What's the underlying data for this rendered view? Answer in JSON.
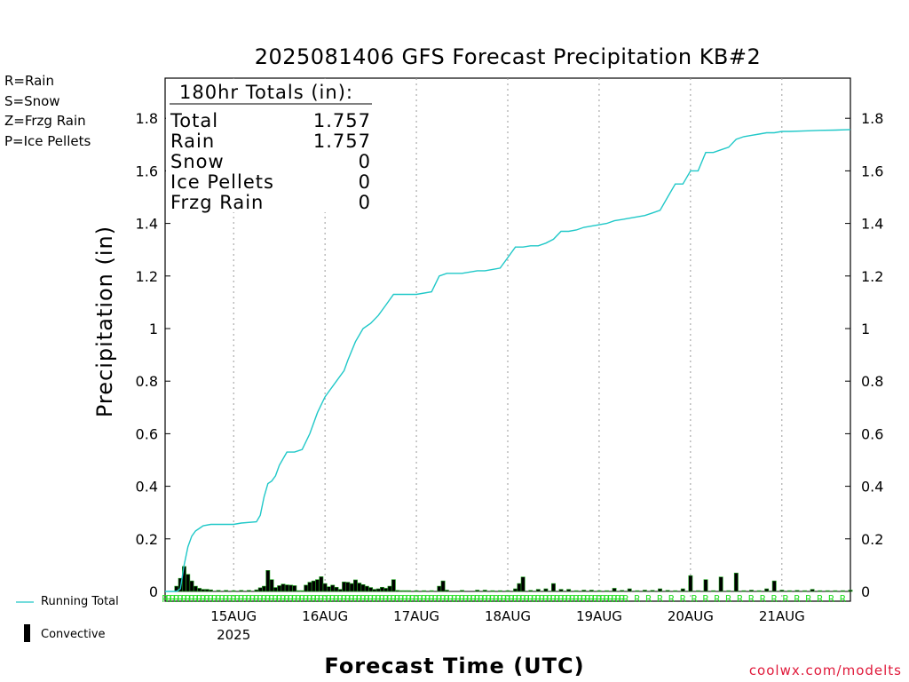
{
  "chart_data": {
    "type": "bar+line",
    "title": "2025081406 GFS Forecast Precipitation KB#2",
    "ylabel": "Precipitation (in)",
    "xlabel": "Forecast Time (UTC)",
    "ylim": [
      0,
      1.9
    ],
    "yticks": [
      0,
      0.2,
      0.4,
      0.6,
      0.8,
      1,
      1.2,
      1.4,
      1.6,
      1.8
    ],
    "ytick_labels": [
      "0",
      "0.2",
      "0.4",
      "0.6",
      "0.8",
      "1",
      "1.2",
      "1.4",
      "1.6",
      "1.8"
    ],
    "xlim_hours": [
      0,
      180
    ],
    "xticks": [
      {
        "hour": 18,
        "label": "15AUG",
        "sub": "2025"
      },
      {
        "hour": 42,
        "label": "16AUG",
        "sub": ""
      },
      {
        "hour": 66,
        "label": "17AUG",
        "sub": ""
      },
      {
        "hour": 90,
        "label": "18AUG",
        "sub": ""
      },
      {
        "hour": 114,
        "label": "19AUG",
        "sub": ""
      },
      {
        "hour": 138,
        "label": "20AUG",
        "sub": ""
      },
      {
        "hour": 162,
        "label": "21AUG",
        "sub": ""
      }
    ],
    "running_total": {
      "name": "Running Total",
      "color": "#20c8c8",
      "hours": [
        0,
        3,
        4,
        5,
        6,
        7,
        8,
        9,
        10,
        12,
        15,
        18,
        20,
        24,
        25,
        26,
        27,
        28,
        29,
        30,
        32,
        34,
        36,
        38,
        40,
        42,
        43,
        45,
        47,
        48,
        50,
        52,
        54,
        56,
        58,
        60,
        61,
        62,
        63,
        64,
        66,
        70,
        72,
        74,
        75,
        76,
        78,
        82,
        84,
        86,
        88,
        90,
        92,
        94,
        96,
        98,
        100,
        102,
        104,
        106,
        108,
        110,
        112,
        114,
        116,
        118,
        120,
        122,
        124,
        126,
        128,
        130,
        132,
        134,
        136,
        138,
        140,
        142,
        144,
        146,
        148,
        150,
        152,
        154,
        156,
        158,
        160,
        162,
        164,
        168,
        172,
        176,
        180
      ],
      "values": [
        0,
        0,
        0.01,
        0.1,
        0.17,
        0.21,
        0.23,
        0.24,
        0.25,
        0.255,
        0.255,
        0.255,
        0.26,
        0.265,
        0.29,
        0.36,
        0.41,
        0.42,
        0.44,
        0.48,
        0.53,
        0.53,
        0.54,
        0.6,
        0.68,
        0.74,
        0.76,
        0.8,
        0.84,
        0.88,
        0.95,
        1.0,
        1.02,
        1.05,
        1.09,
        1.13,
        1.13,
        1.13,
        1.13,
        1.13,
        1.13,
        1.14,
        1.2,
        1.21,
        1.21,
        1.21,
        1.21,
        1.22,
        1.22,
        1.225,
        1.23,
        1.27,
        1.31,
        1.31,
        1.315,
        1.315,
        1.325,
        1.34,
        1.37,
        1.37,
        1.375,
        1.385,
        1.39,
        1.395,
        1.4,
        1.41,
        1.415,
        1.42,
        1.425,
        1.43,
        1.44,
        1.45,
        1.5,
        1.55,
        1.55,
        1.6,
        1.6,
        1.67,
        1.67,
        1.68,
        1.69,
        1.72,
        1.73,
        1.735,
        1.74,
        1.745,
        1.745,
        1.75,
        1.75,
        1.752,
        1.754,
        1.755,
        1.757
      ]
    },
    "convective": {
      "name": "Convective",
      "color": "#000000",
      "hours": [
        3,
        4,
        5,
        6,
        7,
        8,
        9,
        10,
        11,
        12,
        14,
        16,
        18,
        20,
        22,
        24,
        25,
        26,
        27,
        28,
        29,
        30,
        31,
        32,
        33,
        34,
        35,
        36,
        37,
        38,
        39,
        40,
        41,
        42,
        43,
        44,
        45,
        46,
        47,
        48,
        49,
        50,
        51,
        52,
        53,
        54,
        55,
        56,
        57,
        58,
        59,
        60,
        61,
        62,
        63,
        64,
        66,
        68,
        70,
        72,
        73,
        74,
        78,
        82,
        84,
        86,
        88,
        90,
        92,
        93,
        94,
        96,
        98,
        100,
        102,
        104,
        106,
        108,
        110,
        112,
        114,
        116,
        118,
        120,
        122,
        124,
        126,
        128,
        130,
        132,
        134,
        136,
        138,
        140,
        142,
        144,
        146,
        148,
        150,
        152,
        154,
        156,
        158,
        160,
        162,
        164,
        166,
        168,
        170,
        172,
        174,
        176,
        178,
        180
      ],
      "values": [
        0.02,
        0.05,
        0.095,
        0.065,
        0.04,
        0.02,
        0.012,
        0.008,
        0.008,
        0.006,
        0.004,
        0.004,
        0.003,
        0.004,
        0.004,
        0.006,
        0.014,
        0.02,
        0.08,
        0.045,
        0.015,
        0.022,
        0.028,
        0.025,
        0.024,
        0.022,
        0.003,
        0.003,
        0.024,
        0.035,
        0.04,
        0.045,
        0.056,
        0.03,
        0.018,
        0.024,
        0.016,
        0.008,
        0.036,
        0.035,
        0.03,
        0.044,
        0.032,
        0.026,
        0.02,
        0.015,
        0.008,
        0.01,
        0.016,
        0.012,
        0.02,
        0.045,
        0.004,
        0.003,
        0.003,
        0.003,
        0.003,
        0.003,
        0.003,
        0.02,
        0.04,
        0.005,
        0.004,
        0.005,
        0.005,
        0.003,
        0.003,
        0.003,
        0.01,
        0.03,
        0.055,
        0.004,
        0.008,
        0.01,
        0.03,
        0.008,
        0.008,
        0.003,
        0.005,
        0.005,
        0.003,
        0.003,
        0.012,
        0.004,
        0.01,
        0.003,
        0.005,
        0.004,
        0.01,
        0.004,
        0.003,
        0.01,
        0.06,
        0.003,
        0.045,
        0.003,
        0.055,
        0.003,
        0.07,
        0.003,
        0.005,
        0.003,
        0.01,
        0.04,
        0.005,
        0.003,
        0.004,
        0.003,
        0.008,
        0.003,
        0.003,
        0.003,
        0.003,
        0.005
      ]
    },
    "rain_marker": {
      "letter": "R",
      "color": "#22dd22"
    },
    "legend_types": [
      {
        "text": "R=Rain",
        "color": "#22dd22"
      },
      {
        "text": "S=Snow",
        "color": "#3355ee"
      },
      {
        "text": "Z=Frzg Rain",
        "color": "#f0903a"
      },
      {
        "text": "P=Ice Pellets",
        "color": "#e8259a"
      }
    ],
    "totals_box": {
      "header": "180hr Totals (in):",
      "rows": [
        {
          "label": "Total",
          "value": "1.757"
        },
        {
          "label": "Rain",
          "value": "1.757"
        },
        {
          "label": "Snow",
          "value": "0"
        },
        {
          "label": "Ice Pellets",
          "value": "0"
        },
        {
          "label": "Frzg Rain",
          "value": "0"
        }
      ]
    },
    "legend_bottom": {
      "running_total": "Running Total",
      "convective": "Convective"
    },
    "credit": "coolwx.com/modelts"
  }
}
